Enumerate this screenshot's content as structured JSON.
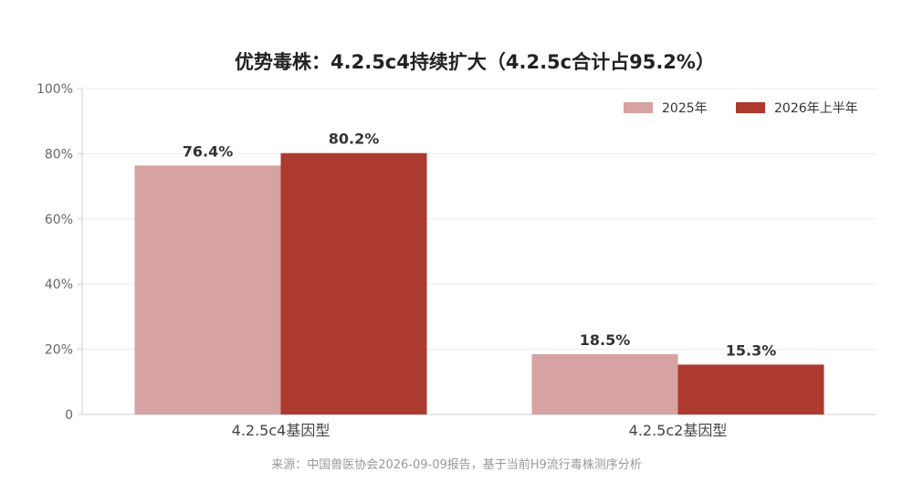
{
  "chart_data": {
    "type": "bar",
    "title": "优势毒株：4.2.5c4持续扩大（4.2.5c合计占95.2%）",
    "categories": [
      "4.2.5c4基因型",
      "4.2.5c2基因型"
    ],
    "series": [
      {
        "name": "2025年",
        "values": [
          76.4,
          18.5
        ],
        "labels": [
          "76.4%",
          "18.5%"
        ],
        "color": "#d6a2a2"
      },
      {
        "name": "2026年上半年",
        "values": [
          80.2,
          15.3
        ],
        "labels": [
          "80.2%",
          "15.3%"
        ],
        "color": "#ad3a2f"
      }
    ],
    "y_ticks": [
      "0",
      "20%",
      "40%",
      "60%",
      "80%",
      "100%"
    ],
    "ylim": [
      0,
      100
    ],
    "grid": true,
    "legend_position": "top-right"
  },
  "footer": {
    "source": "来源：中国兽医协会2026-09-09报告，基于当前H9流行毒株测序分析"
  },
  "colors": {
    "title": "#222222",
    "axis_text": "#666666",
    "grid": "#e8ecef",
    "axis_line": "#cccccc",
    "footer": "#999999"
  }
}
